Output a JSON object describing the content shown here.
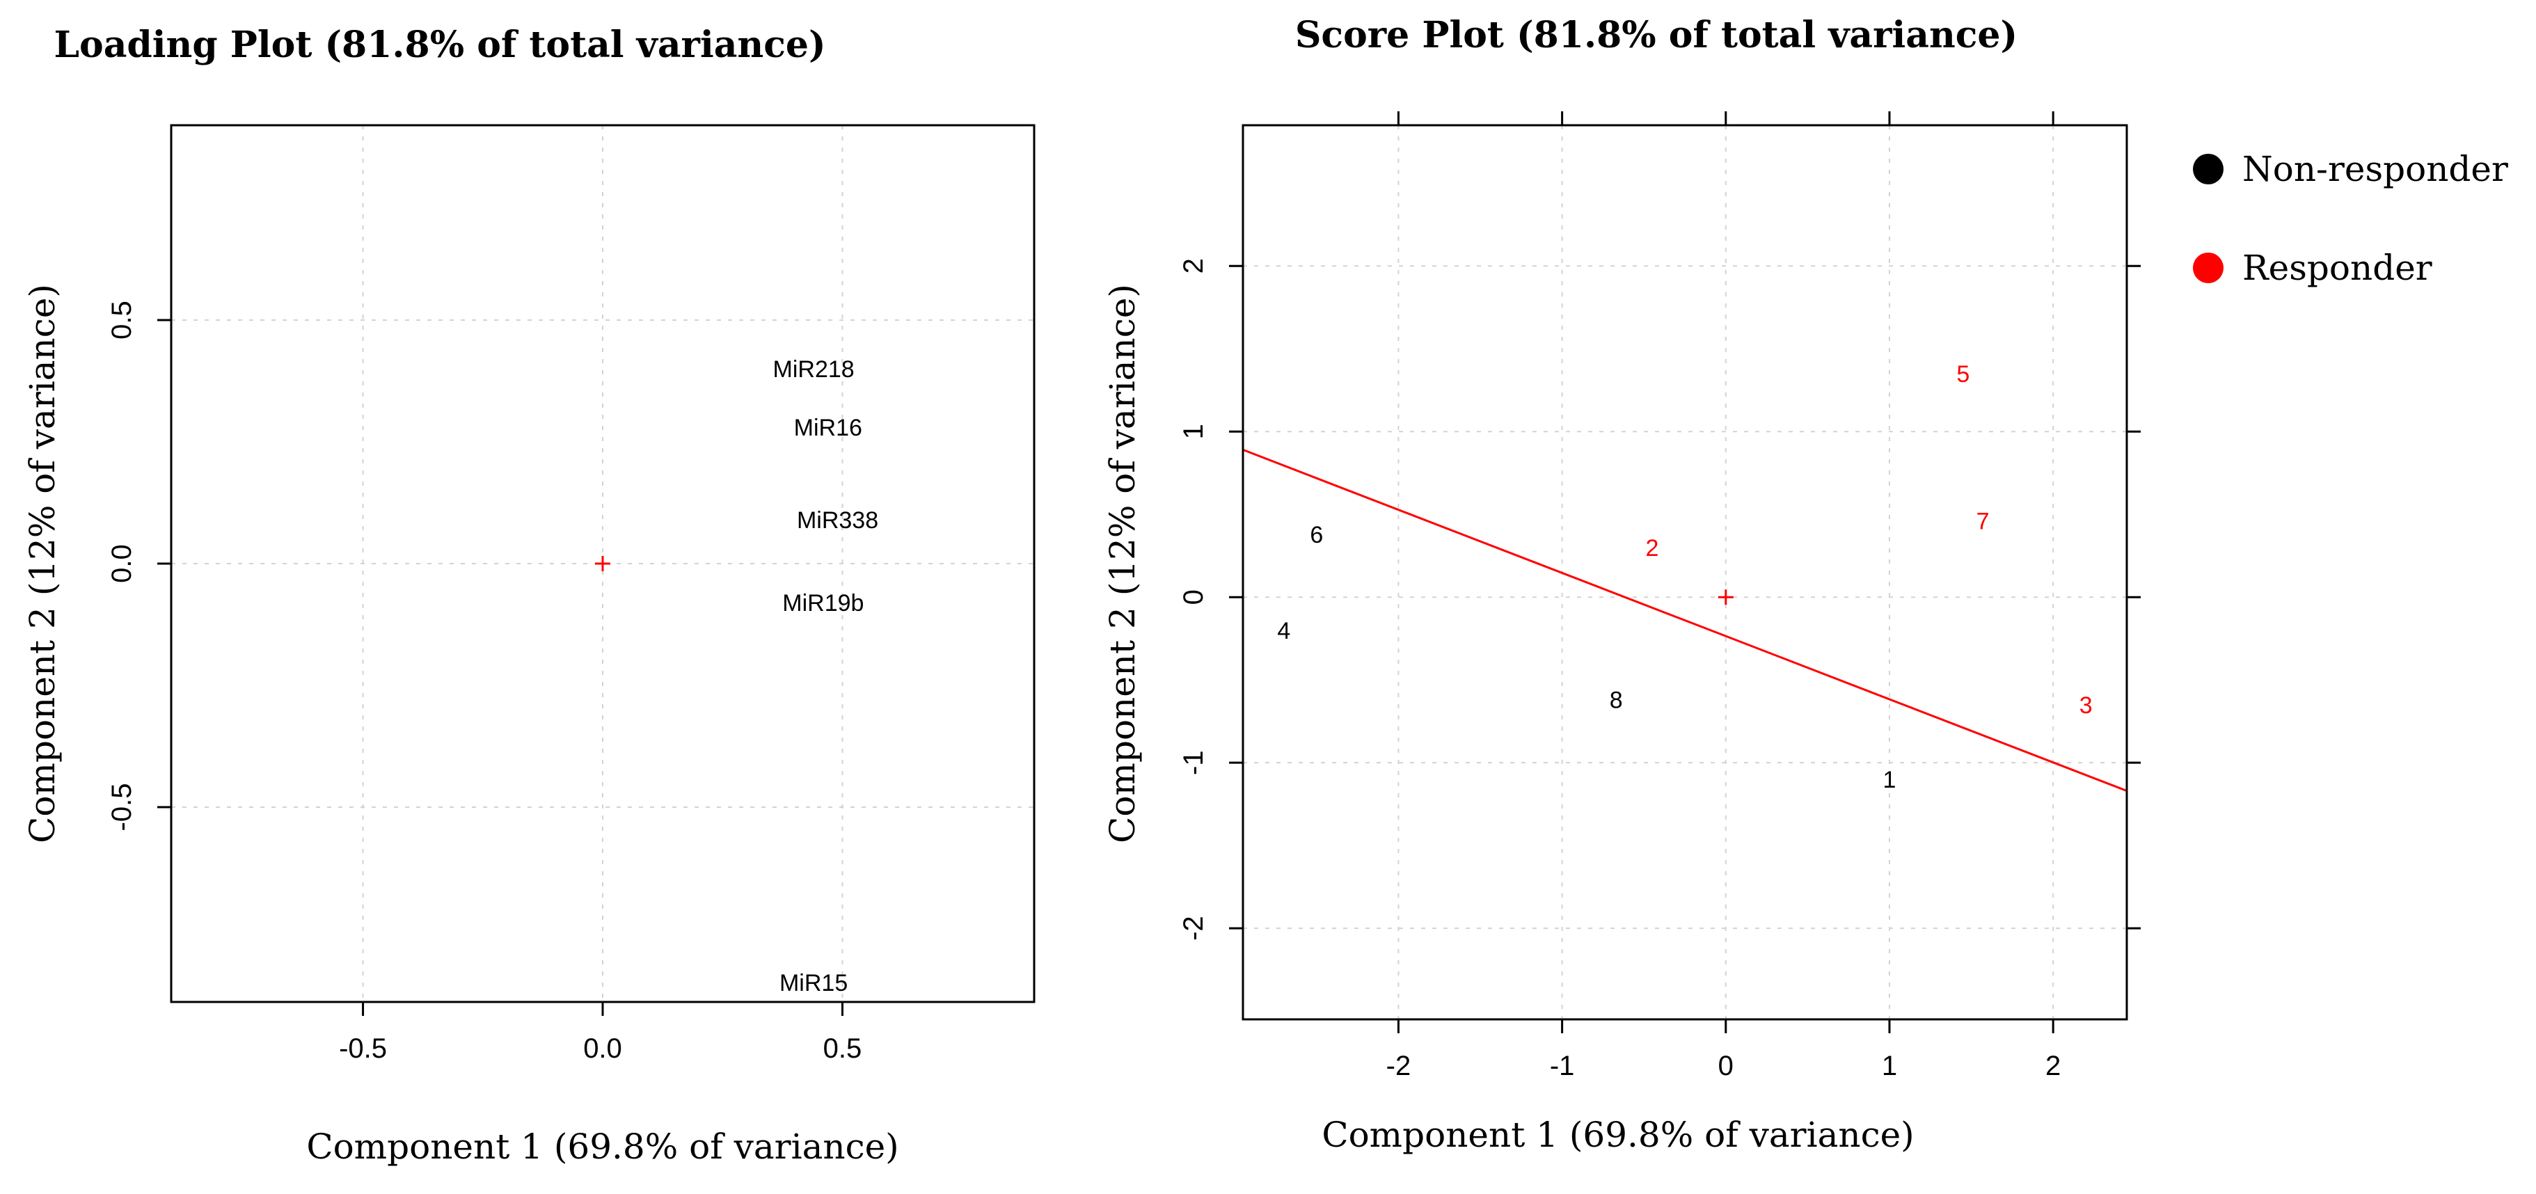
{
  "colors": {
    "nonresponder": "#000000",
    "responder": "#ff0000",
    "axis": "#000000",
    "grid": "#d3d3d3"
  },
  "chart_data": [
    {
      "type": "scatter",
      "id": "loading",
      "title": "Loading Plot (81.8% of total variance)",
      "xlabel": "Component 1 (69.8% of variance)",
      "ylabel": "Component 2 (12% of variance)",
      "xlim": [
        -0.9,
        0.9
      ],
      "ylim": [
        -0.9,
        0.9
      ],
      "xticks": [
        -0.5,
        0.0,
        0.5
      ],
      "xtick_labels": [
        "-0.5",
        "0.0",
        "0.5"
      ],
      "yticks": [
        -0.5,
        0.0,
        0.5
      ],
      "ytick_labels": [
        "-0.5",
        "0.0",
        "0.5"
      ],
      "grid": true,
      "origin_marker": {
        "x": 0,
        "y": 0,
        "symbol": "+"
      },
      "points": [
        {
          "label": "MiR218",
          "x": 0.44,
          "y": 0.4
        },
        {
          "label": "MiR16",
          "x": 0.47,
          "y": 0.28
        },
        {
          "label": "MiR338",
          "x": 0.49,
          "y": 0.09
        },
        {
          "label": "MiR19b",
          "x": 0.46,
          "y": -0.08
        },
        {
          "label": "MiR15",
          "x": 0.44,
          "y": -0.86
        }
      ]
    },
    {
      "type": "scatter",
      "id": "score",
      "title": "Score Plot (81.8% of total variance)",
      "xlabel": "Component 1 (69.8% of variance)",
      "ylabel": "Component 2 (12% of variance)",
      "xlim": [
        -2.95,
        2.45
      ],
      "ylim": [
        -2.55,
        2.85
      ],
      "xticks": [
        -2,
        -1,
        0,
        1,
        2
      ],
      "xtick_labels": [
        "-2",
        "-1",
        "0",
        "1",
        "2"
      ],
      "yticks": [
        -2,
        -1,
        0,
        1,
        2
      ],
      "ytick_labels": [
        "-2",
        "-1",
        "0",
        "1",
        "2"
      ],
      "grid": true,
      "origin_marker": {
        "x": 0,
        "y": 0,
        "symbol": "+"
      },
      "regression_line": {
        "x1": -2.95,
        "y1": 0.89,
        "x2": 2.45,
        "y2": -1.17
      },
      "points": [
        {
          "label": "1",
          "x": 1.0,
          "y": -1.1,
          "group": "Non-responder"
        },
        {
          "label": "2",
          "x": -0.45,
          "y": 0.3,
          "group": "Responder"
        },
        {
          "label": "3",
          "x": 2.2,
          "y": -0.65,
          "group": "Responder"
        },
        {
          "label": "4",
          "x": -2.7,
          "y": -0.2,
          "group": "Non-responder"
        },
        {
          "label": "5",
          "x": 1.45,
          "y": 1.35,
          "group": "Responder"
        },
        {
          "label": "6",
          "x": -2.5,
          "y": 0.38,
          "group": "Non-responder"
        },
        {
          "label": "7",
          "x": 1.57,
          "y": 0.46,
          "group": "Responder"
        },
        {
          "label": "8",
          "x": -0.67,
          "y": -0.62,
          "group": "Non-responder"
        }
      ],
      "legend": {
        "position": "top-right, outside plot",
        "entries": [
          {
            "label": "Non-responder",
            "color": "#000000"
          },
          {
            "label": "Responder",
            "color": "#ff0000"
          }
        ]
      }
    }
  ]
}
